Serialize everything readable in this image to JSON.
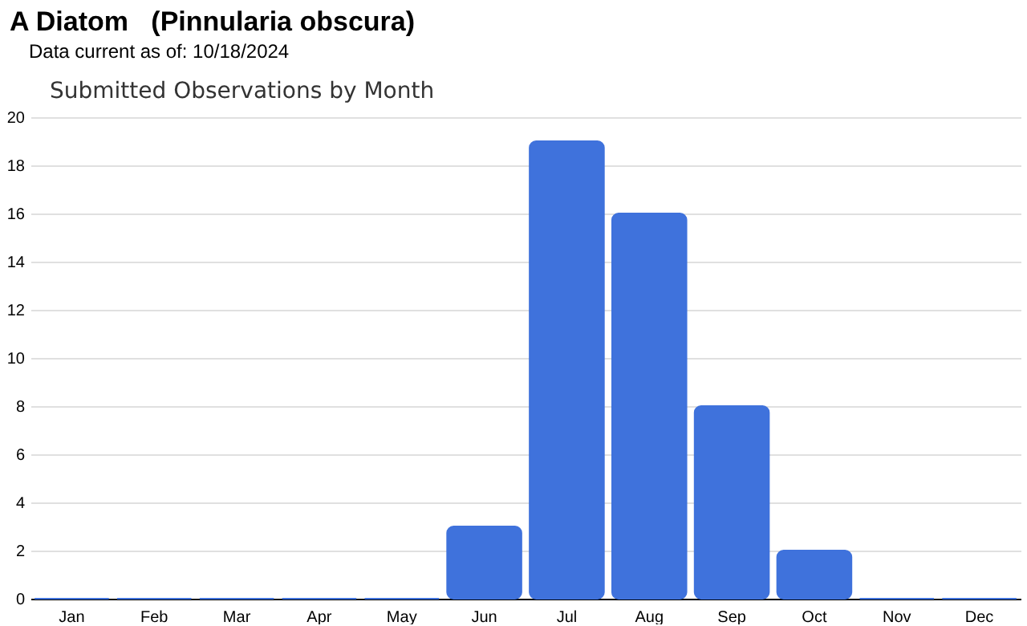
{
  "chart_data": {
    "type": "bar",
    "title": "A Diatom   (Pinnularia obscura)",
    "subtitle": "Data current as of: 10/18/2024",
    "annotations": [
      "Submitted Observations by Month"
    ],
    "categories": [
      "Jan",
      "Feb",
      "Mar",
      "Apr",
      "May",
      "Jun",
      "Jul",
      "Aug",
      "Sep",
      "Oct",
      "Nov",
      "Dec"
    ],
    "values": [
      0,
      0,
      0,
      0,
      0,
      3,
      19,
      16,
      8,
      2,
      0,
      0
    ],
    "color": "#3f72dc",
    "ylim": [
      0,
      20
    ],
    "yticks": [
      0,
      2,
      4,
      6,
      8,
      10,
      12,
      14,
      16,
      18,
      20
    ],
    "grid": "y"
  }
}
